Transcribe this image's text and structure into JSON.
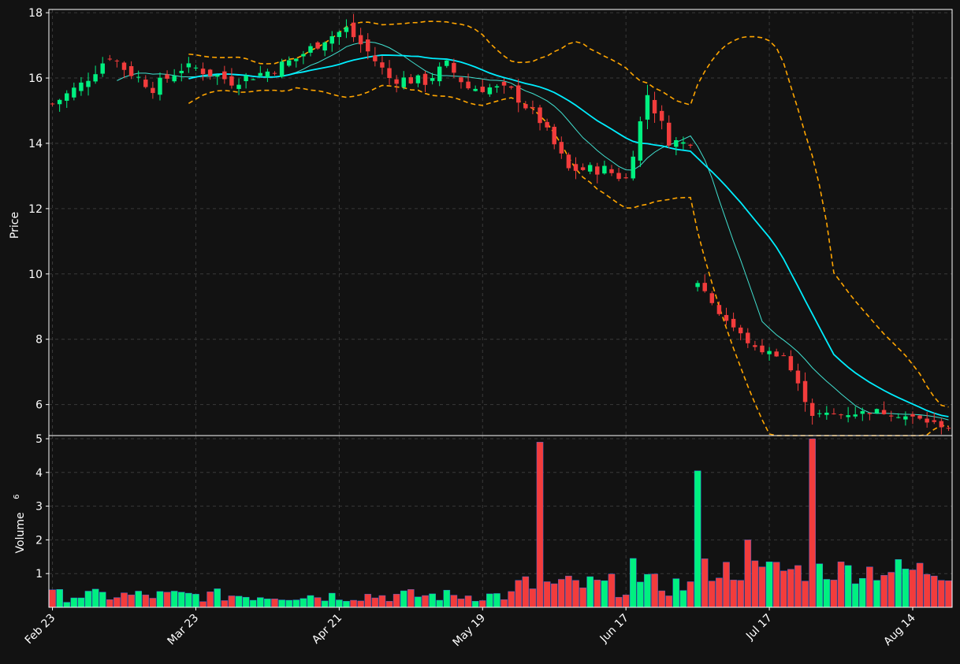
{
  "colors": {
    "background": "#121212",
    "up": "#00f080",
    "down": "#f23c3c",
    "ma_fast": "#40e0d0",
    "ma_slow": "#00eeff",
    "bands": "#ffa500",
    "grid": "#3a3a3a",
    "axis": "#ffffff",
    "volume_edge": "#3a6ff0"
  },
  "chart_data": [
    {
      "type": "candlestick",
      "ylabel": "Price",
      "ylim": [
        5.05,
        18.1
      ],
      "y_ticks": [
        "6",
        "8",
        "10",
        "12",
        "14",
        "16",
        "18"
      ],
      "grid": true,
      "n_sessions": 126,
      "x_tick_labels": [
        {
          "index": 0,
          "label": "Feb 23"
        },
        {
          "index": 20,
          "label": "Mar 23"
        },
        {
          "index": 40,
          "label": "Apr 21"
        },
        {
          "index": 60,
          "label": "May 19"
        },
        {
          "index": 80,
          "label": "Jun 17"
        },
        {
          "index": 100,
          "label": "Jul 17"
        },
        {
          "index": 120,
          "label": "Aug 14"
        }
      ],
      "series": [
        {
          "type": "ohlc",
          "note": "open/high/low/close per trading session",
          "ohlc": []
        },
        {
          "type": "line",
          "style": "fast moving average"
        },
        {
          "type": "line",
          "style": "slow moving average"
        },
        {
          "type": "band",
          "style": "upper and lower dashed bands"
        }
      ]
    },
    {
      "type": "bar",
      "ylabel": "Volume",
      "ylabel_exponent": "6",
      "ylim": [
        0,
        5.0
      ],
      "y_ticks": [
        "1",
        "2",
        "3",
        "4",
        "5"
      ],
      "grid": true,
      "values_millions": []
    }
  ]
}
